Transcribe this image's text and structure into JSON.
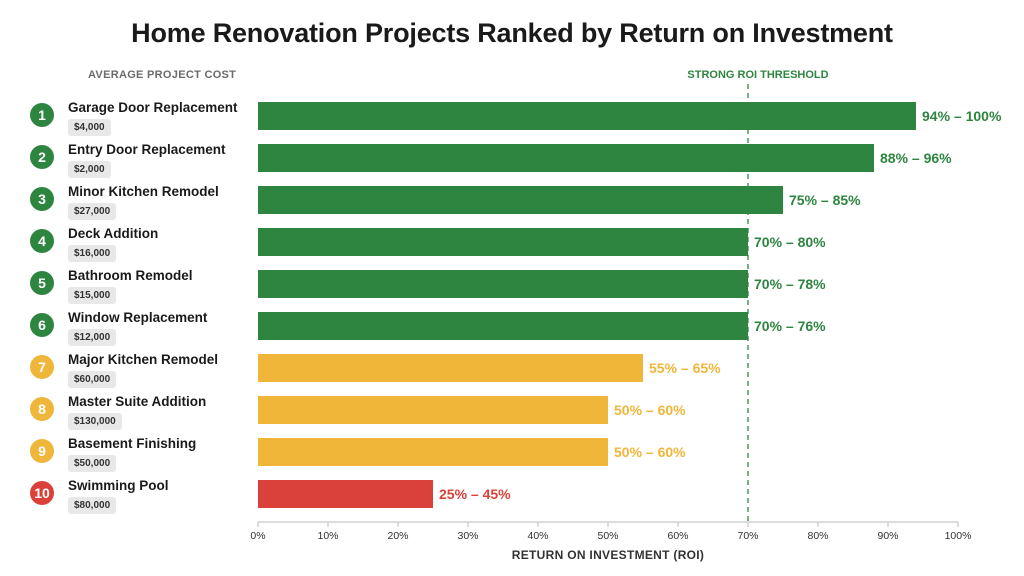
{
  "title": "Home Renovation Projects Ranked by Return on Investment",
  "cost_header": "AVERAGE PROJECT COST",
  "threshold_label": "STRONG ROI THRESHOLD",
  "xlabel": "RETURN ON INVESTMENT (ROI)",
  "colors": {
    "strong": "#2e8540",
    "moderate": "#f0b63a",
    "weak": "#d9413a"
  },
  "chart_data": {
    "type": "bar",
    "orientation": "horizontal",
    "title": "Home Renovation Projects Ranked by Return on Investment",
    "xlabel": "RETURN ON INVESTMENT (ROI)",
    "xlim": [
      0,
      100
    ],
    "xticks": [
      0,
      10,
      20,
      30,
      40,
      50,
      60,
      70,
      80,
      90,
      100
    ],
    "xtick_labels": [
      "0%",
      "10%",
      "20%",
      "30%",
      "40%",
      "50%",
      "60%",
      "70%",
      "80%",
      "90%",
      "100%"
    ],
    "threshold": {
      "value": 70,
      "label": "STRONG ROI THRESHOLD"
    },
    "categories": [
      "Garage Door Replacement",
      "Entry Door Replacement",
      "Minor Kitchen Remodel",
      "Deck Addition",
      "Bathroom Remodel",
      "Window Replacement",
      "Major Kitchen Remodel",
      "Master Suite Addition",
      "Basement Finishing",
      "Swimming Pool"
    ],
    "rows": [
      {
        "rank": "1",
        "name": "Garage Door Replacement",
        "cost": "$4,000",
        "low": 94,
        "high": 100,
        "label": "94% – 100%",
        "tier": "strong"
      },
      {
        "rank": "2",
        "name": "Entry Door Replacement",
        "cost": "$2,000",
        "low": 88,
        "high": 96,
        "label": "88% – 96%",
        "tier": "strong"
      },
      {
        "rank": "3",
        "name": "Minor Kitchen Remodel",
        "cost": "$27,000",
        "low": 75,
        "high": 85,
        "label": "75% – 85%",
        "tier": "strong"
      },
      {
        "rank": "4",
        "name": "Deck Addition",
        "cost": "$16,000",
        "low": 70,
        "high": 80,
        "label": "70% – 80%",
        "tier": "strong"
      },
      {
        "rank": "5",
        "name": "Bathroom Remodel",
        "cost": "$15,000",
        "low": 70,
        "high": 78,
        "label": "70% – 78%",
        "tier": "strong"
      },
      {
        "rank": "6",
        "name": "Window Replacement",
        "cost": "$12,000",
        "low": 70,
        "high": 76,
        "label": "70% – 76%",
        "tier": "strong"
      },
      {
        "rank": "7",
        "name": "Major Kitchen Remodel",
        "cost": "$60,000",
        "low": 55,
        "high": 65,
        "label": "55% – 65%",
        "tier": "moderate"
      },
      {
        "rank": "8",
        "name": "Master Suite Addition",
        "cost": "$130,000",
        "low": 50,
        "high": 60,
        "label": "50% – 60%",
        "tier": "moderate"
      },
      {
        "rank": "9",
        "name": "Basement Finishing",
        "cost": "$50,000",
        "low": 50,
        "high": 60,
        "label": "50% – 60%",
        "tier": "moderate"
      },
      {
        "rank": "10",
        "name": "Swimming Pool",
        "cost": "$80,000",
        "low": 25,
        "high": 45,
        "label": "25% – 45%",
        "tier": "weak"
      }
    ],
    "grid": false,
    "legend": "none"
  }
}
